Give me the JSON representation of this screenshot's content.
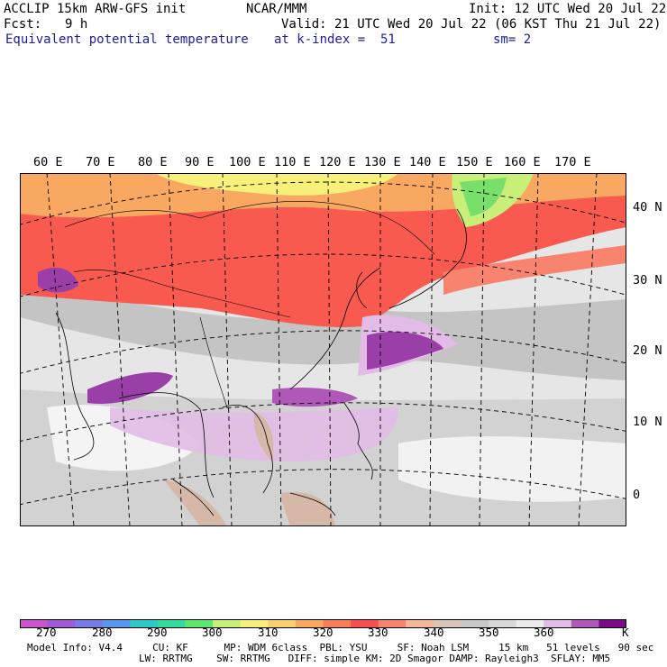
{
  "header": {
    "model_name": "ACCLIP 15km ARW-GFS init",
    "institution": "NCAR/MMM",
    "init_time": "Init: 12 UTC Wed 20 Jul 22",
    "forecast_label": "Fcst:",
    "forecast_hour": "9 h",
    "valid_time": "Valid: 21 UTC Wed 20 Jul 22 (06 KST Thu 21 Jul 22)",
    "field_name": "Equivalent potential temperature",
    "level": "at k-index =  51",
    "smoothing": "sm= 2"
  },
  "map": {
    "lon_labels": [
      "60 E",
      "70 E",
      "80 E",
      "90 E",
      "100 E",
      "110 E",
      "120 E",
      "130 E",
      "140 E",
      "150 E",
      "160 E",
      "170 E"
    ],
    "lat_labels": [
      "40 N",
      "30 N",
      "20 N",
      "10 N",
      "0"
    ]
  },
  "colorbar": {
    "unit": "K",
    "colors": [
      "#cc55cc",
      "#a05ad6",
      "#7a7ae6",
      "#5a96ee",
      "#2ec8c8",
      "#35dca0",
      "#5ce86e",
      "#c8f078",
      "#f7f07a",
      "#f8d070",
      "#f8a860",
      "#f87e5a",
      "#f85050",
      "#f88470",
      "#f4b898",
      "#d8c4b8",
      "#c8c8c8",
      "#d8d8d8",
      "#ececec",
      "#e2bce6",
      "#b058b8",
      "#7a0a8a"
    ],
    "tick_labels": [
      "270",
      "280",
      "290",
      "300",
      "310",
      "320",
      "330",
      "340",
      "350",
      "360"
    ]
  },
  "footer": {
    "line1": "Model Info: V4.4     CU: KF      MP: WDM 6class  PBL: YSU     SF: Noah LSM     15 km   51 levels   90 sec",
    "line2": "LW: RRTMG    SW: RRTMG   DIFF: simple KM: 2D Smagor DAMP: Rayleigh3  SFLAY: MM5"
  }
}
